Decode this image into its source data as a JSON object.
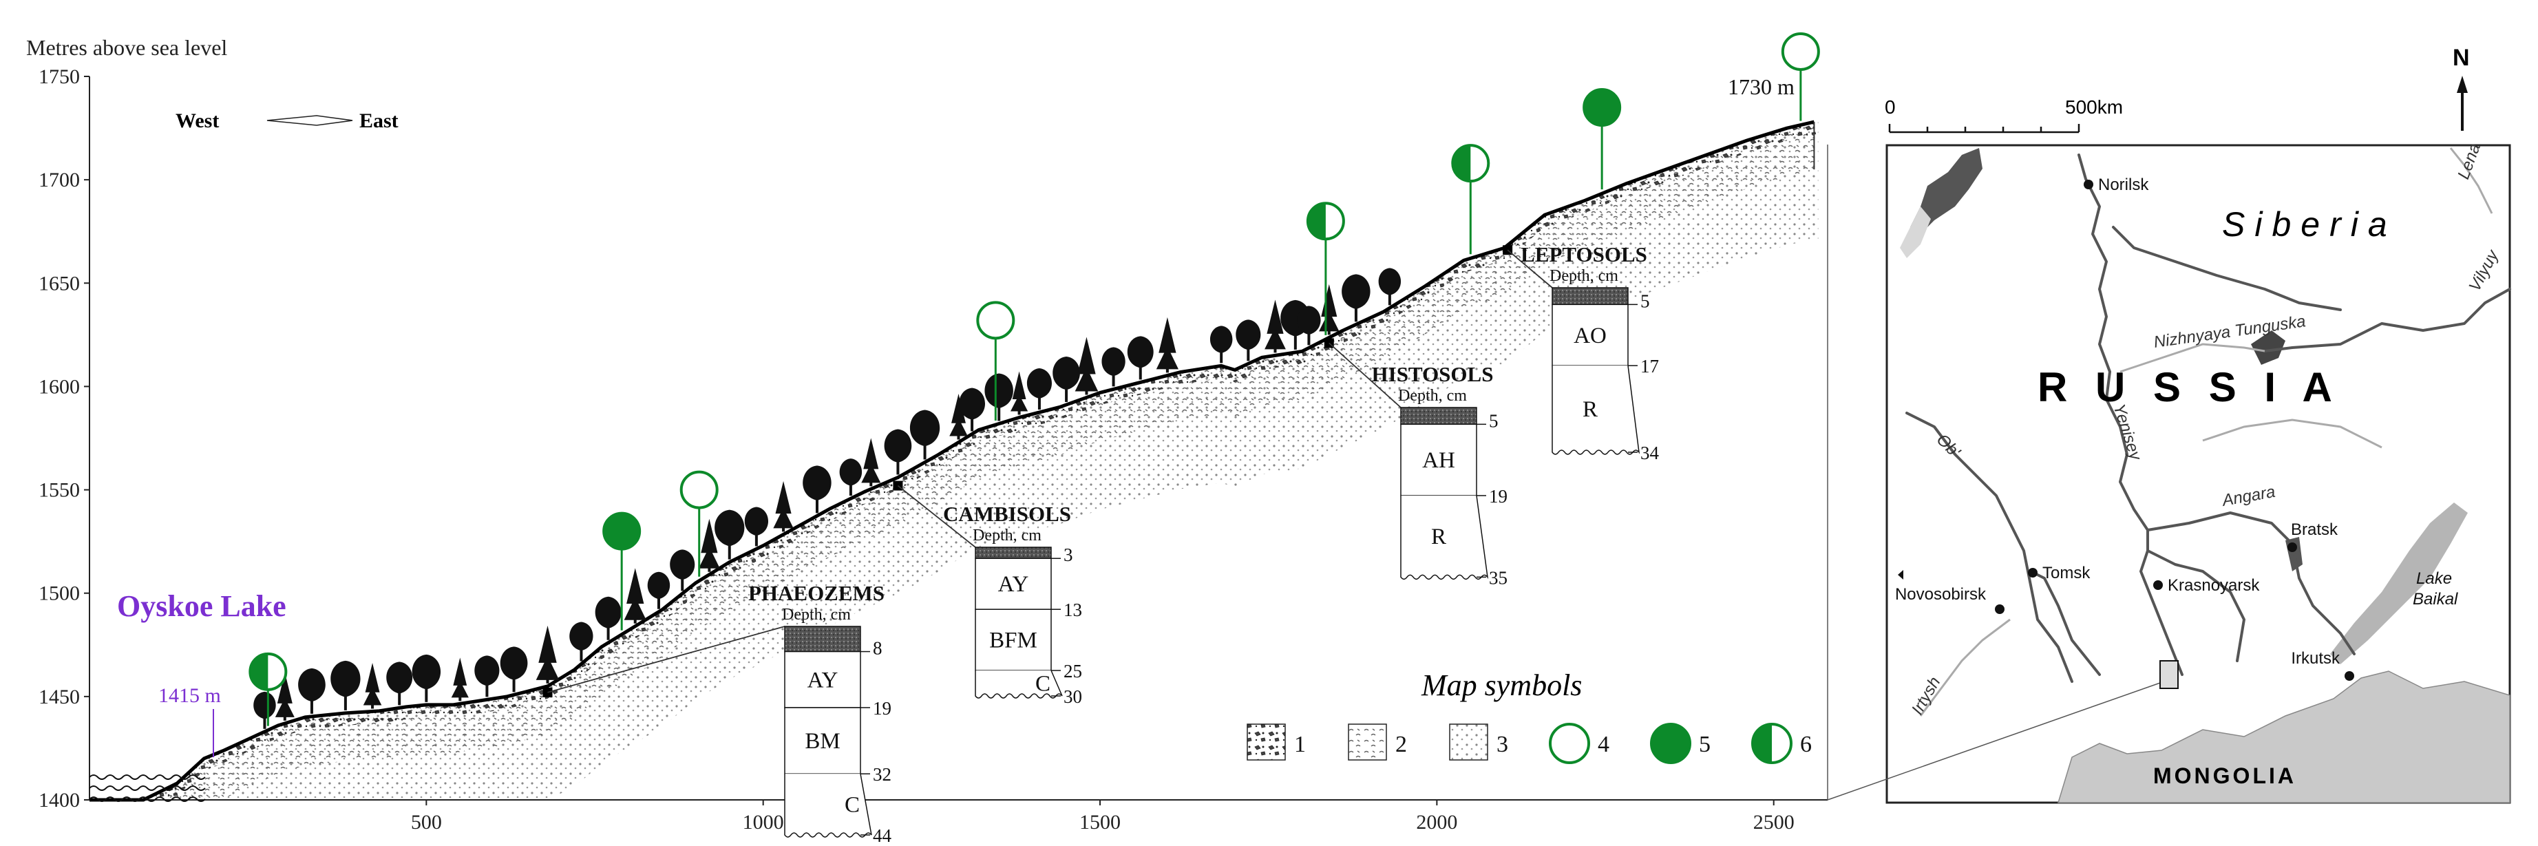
{
  "colors": {
    "lake_label": "#7b2fd1",
    "symbol_green": "#0c8a2a",
    "tree": "#111111",
    "map_land": "#ffffff",
    "map_mongolia": "#c9c9c9",
    "map_rivers": "#555555",
    "map_lakes": "#9a9a9a"
  },
  "chart_data": {
    "type": "line",
    "title": "",
    "ylabel": "Metres above sea level",
    "xlabel": "",
    "xlim": [
      0,
      2580
    ],
    "ylim": [
      1400,
      1750
    ],
    "x_ticks": [
      500,
      1000,
      1500,
      2000,
      2500
    ],
    "y_ticks": [
      1400,
      1450,
      1500,
      1550,
      1600,
      1650,
      1700,
      1750
    ],
    "direction_label": {
      "west": "West",
      "east": "East"
    },
    "lake": {
      "name": "Oyskoe Lake",
      "elevation_label": "1415 m",
      "x": 175,
      "elevation": 1415
    },
    "summit": {
      "label": "1730 m",
      "x": 2555,
      "elevation": 1728
    },
    "profile": {
      "x": [
        0,
        80,
        130,
        170,
        200,
        240,
        280,
        320,
        380,
        430,
        470,
        500,
        540,
        580,
        620,
        680,
        720,
        760,
        800,
        850,
        900,
        950,
        1000,
        1050,
        1100,
        1150,
        1200,
        1260,
        1320,
        1380,
        1440,
        1500,
        1560,
        1620,
        1680,
        1700,
        1740,
        1800,
        1860,
        1920,
        1980,
        2040,
        2100,
        2160,
        2220,
        2280,
        2340,
        2400,
        2460,
        2520,
        2560
      ],
      "y": [
        1400,
        1400,
        1408,
        1420,
        1424,
        1430,
        1436,
        1440,
        1442,
        1443,
        1445,
        1446,
        1446,
        1448,
        1450,
        1455,
        1463,
        1474,
        1482,
        1492,
        1505,
        1515,
        1523,
        1532,
        1541,
        1549,
        1556,
        1567,
        1579,
        1585,
        1590,
        1597,
        1602,
        1607,
        1610,
        1608,
        1614,
        1617,
        1627,
        1636,
        1648,
        1661,
        1667,
        1683,
        1690,
        1698,
        1705,
        1712,
        1719,
        1725,
        1728
      ]
    },
    "trees_x": [
      260,
      290,
      330,
      380,
      420,
      460,
      500,
      550,
      590,
      630,
      680,
      730,
      770,
      810,
      845,
      880,
      920,
      950,
      990,
      1030,
      1080,
      1130,
      1160,
      1200,
      1240,
      1290,
      1310,
      1350,
      1380,
      1410,
      1450,
      1480,
      1520,
      1560,
      1600,
      1680,
      1720,
      1760,
      1790,
      1810,
      1840,
      1880,
      1930
    ],
    "symbols": [
      {
        "type": 6,
        "x": 265,
        "elevation": 1462
      },
      {
        "type": 5,
        "x": 790,
        "elevation": 1530
      },
      {
        "type": 4,
        "x": 905,
        "elevation": 1550
      },
      {
        "type": 4,
        "x": 1345,
        "elevation": 1632
      },
      {
        "type": 6,
        "x": 1835,
        "elevation": 1680
      },
      {
        "type": 6,
        "x": 2050,
        "elevation": 1708
      },
      {
        "type": 5,
        "x": 2245,
        "elevation": 1735
      },
      {
        "type": 4,
        "x": 2540,
        "elevation": 1762
      }
    ],
    "soil_profiles": [
      {
        "name": "PHAEOZEMS",
        "depth_label": "Depth, cm",
        "site_x": 680,
        "site_elevation": 1452,
        "horizons": [
          {
            "label": "AY",
            "top": 8,
            "bottom": 19
          },
          {
            "label": "BM",
            "top": 19,
            "bottom": 32
          },
          {
            "label": "C",
            "top": 32,
            "bottom": 44
          }
        ],
        "depths": [
          "8",
          "19",
          "32",
          "44"
        ]
      },
      {
        "name": "CAMBISOLS",
        "depth_label": "Depth, cm",
        "site_x": 1200,
        "site_elevation": 1552,
        "horizons": [
          {
            "label": "AY",
            "top": 3,
            "bottom": 13
          },
          {
            "label": "BFM",
            "top": 13,
            "bottom": 25
          },
          {
            "label": "C",
            "top": 25,
            "bottom": 30
          }
        ],
        "depths": [
          "3",
          "13",
          "25",
          "30"
        ]
      },
      {
        "name": "HISTOSOLS",
        "depth_label": "Depth, cm",
        "site_x": 1840,
        "site_elevation": 1621,
        "horizons": [
          {
            "label": "AH",
            "top": 5,
            "bottom": 19
          },
          {
            "label": "R",
            "top": 19,
            "bottom": 35
          }
        ],
        "depths": [
          "5",
          "19",
          "35"
        ]
      },
      {
        "name": "LEPTOSOLS",
        "depth_label": "Depth, cm",
        "site_x": 2105,
        "site_elevation": 1666,
        "horizons": [
          {
            "label": "AO",
            "top": 5,
            "bottom": 17
          },
          {
            "label": "R",
            "top": 17,
            "bottom": 34
          }
        ],
        "depths": [
          "5",
          "17",
          "34"
        ]
      }
    ],
    "legend": {
      "title": "Map symbols",
      "items": [
        "1",
        "2",
        "3",
        "4",
        "5",
        "6"
      ]
    }
  },
  "map": {
    "scale_labels": [
      "0",
      "500km"
    ],
    "north": "N",
    "region": "Siberia",
    "country": "R U S S I A",
    "neighbor": "MONGOLIA",
    "rivers": [
      "Lena",
      "Vilyuy",
      "Nizhnyaya Tunguska",
      "Ob'",
      "Yenisey",
      "Angara",
      "Irtysh"
    ],
    "cities": [
      "Norilsk",
      "Tomsk",
      "Novosobirsk",
      "Krasnoyarsk",
      "Bratsk",
      "Irkutsk"
    ],
    "lake": "Lake Baikal",
    "lake_lines": [
      "Lake",
      "Baikal"
    ]
  }
}
